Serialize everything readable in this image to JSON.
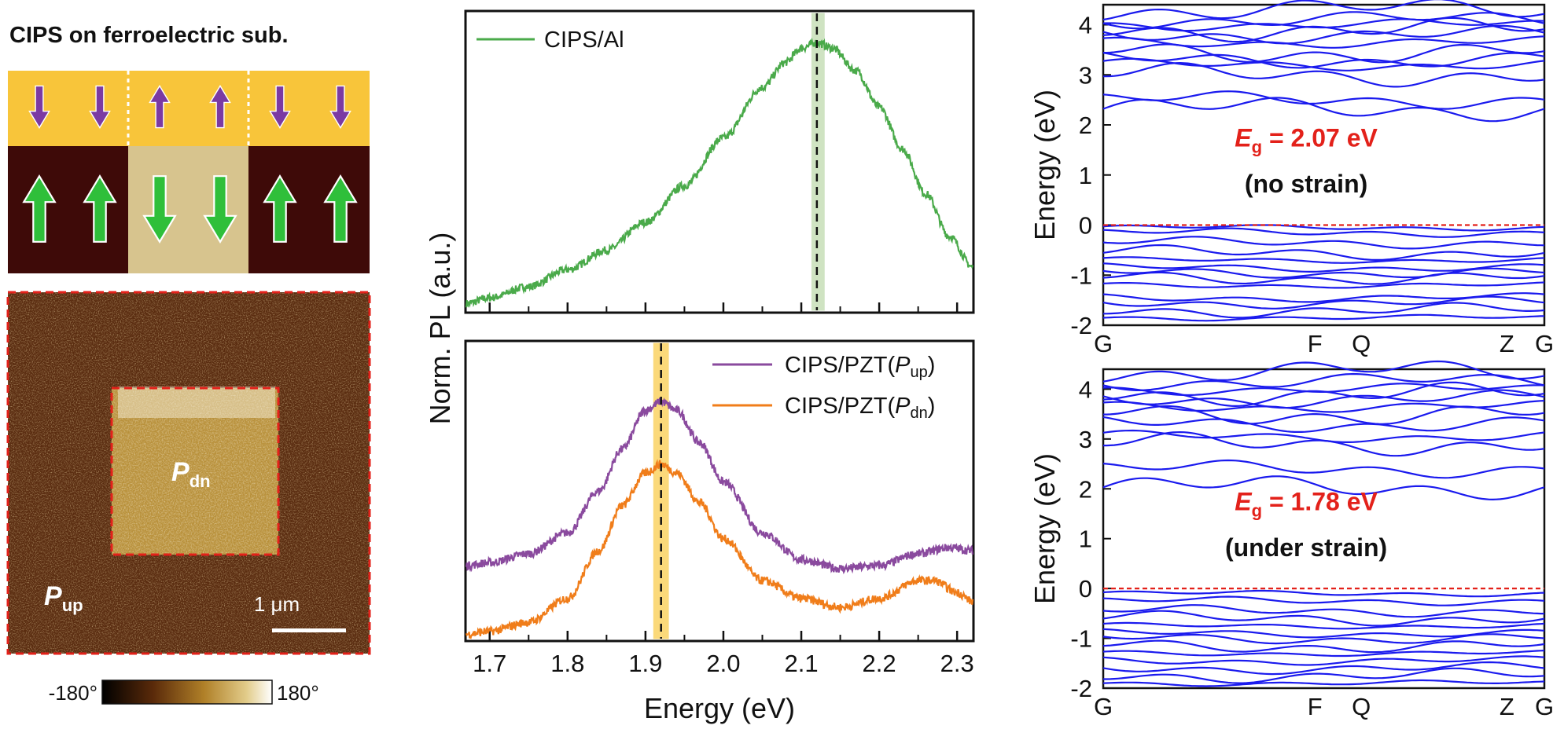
{
  "schematic": {
    "title": "CIPS on ferroelectric sub.",
    "colors": {
      "cips_layer": "#f8c53a",
      "substrate_up": "#3e0a08",
      "substrate_dn": "#d7c48e",
      "arrow_up_down_cips": "#7b3aa3",
      "arrow_substrate": "#2fbf3a"
    }
  },
  "pfm_image": {
    "outer_label": "P",
    "outer_sub": "up",
    "inner_label": "P",
    "inner_sub": "dn",
    "scalebar": "1 μm",
    "colorbar_min": "-180°",
    "colorbar_max": "180°"
  },
  "chart_data": [
    {
      "type": "line",
      "panel": "PL top",
      "series": [
        {
          "name": "CIPS/Al",
          "color": "#4aaa4a",
          "x": [
            1.67,
            1.7,
            1.75,
            1.8,
            1.85,
            1.9,
            1.95,
            2.0,
            2.05,
            2.08,
            2.1,
            2.12,
            2.14,
            2.17,
            2.2,
            2.23,
            2.26,
            2.29,
            2.32
          ],
          "y": [
            0.03,
            0.05,
            0.09,
            0.15,
            0.22,
            0.32,
            0.45,
            0.62,
            0.8,
            0.89,
            0.94,
            0.96,
            0.94,
            0.86,
            0.73,
            0.58,
            0.42,
            0.27,
            0.16
          ]
        }
      ],
      "xlim": [
        1.67,
        2.32
      ],
      "ylim": [
        0,
        1.07
      ],
      "shaded_band": {
        "x0": 2.113,
        "x1": 2.13,
        "color": "#cfe3c2"
      },
      "dashed_line_x": 2.12
    },
    {
      "type": "line",
      "panel": "PL bottom",
      "series": [
        {
          "name": "CIPS/PZT(Pup)",
          "color": "#8a4a9e",
          "x": [
            1.67,
            1.7,
            1.75,
            1.8,
            1.84,
            1.87,
            1.9,
            1.92,
            1.94,
            1.97,
            2.0,
            2.05,
            2.1,
            2.15,
            2.2,
            2.25,
            2.29,
            2.32
          ],
          "y": [
            0.25,
            0.26,
            0.29,
            0.36,
            0.5,
            0.64,
            0.77,
            0.8,
            0.77,
            0.66,
            0.53,
            0.36,
            0.27,
            0.24,
            0.25,
            0.29,
            0.31,
            0.3
          ]
        },
        {
          "name": "CIPS/PZT(Pdn)",
          "color": "#f07d1a",
          "x": [
            1.67,
            1.7,
            1.75,
            1.8,
            1.84,
            1.87,
            1.9,
            1.92,
            1.94,
            1.97,
            2.0,
            2.05,
            2.1,
            2.15,
            2.2,
            2.25,
            2.27,
            2.3,
            2.32
          ],
          "y": [
            0.02,
            0.03,
            0.06,
            0.14,
            0.3,
            0.45,
            0.56,
            0.59,
            0.56,
            0.46,
            0.34,
            0.2,
            0.14,
            0.11,
            0.14,
            0.2,
            0.2,
            0.16,
            0.13
          ]
        }
      ],
      "xlim": [
        1.67,
        2.32
      ],
      "ylim": [
        0,
        1.0
      ],
      "shaded_band": {
        "x0": 1.91,
        "x1": 1.93,
        "color": "#fbd97a"
      },
      "dashed_line_x": 1.92,
      "xticks": [
        "1.7",
        "1.8",
        "1.9",
        "2.0",
        "2.1",
        "2.2",
        "2.3"
      ],
      "xlabel": "Energy (eV)"
    },
    {
      "type": "line",
      "panel": "band structure no strain",
      "kpoints": [
        "G",
        "F",
        "Q",
        "Z",
        "G"
      ],
      "ylim": [
        -2,
        4.4
      ],
      "yticks": [
        "-2",
        "-1",
        "0",
        "1",
        "2",
        "3",
        "4"
      ],
      "ylabel": "Energy (eV)",
      "band_color": "#1a1aee",
      "conduction_levels": [
        2.07,
        2.5,
        3.0,
        3.2,
        3.3,
        3.45,
        3.65,
        3.8,
        3.9,
        4.0,
        4.1,
        4.3
      ],
      "valence_levels": [
        -0.05,
        -0.15,
        -0.35,
        -0.55,
        -0.7,
        -0.85,
        -0.95,
        -1.05,
        -1.2,
        -1.45,
        -1.55,
        -1.7,
        -1.85
      ],
      "gap_text": {
        "label": "E",
        "sub": "g",
        "value": "= 2.07 eV",
        "note": "(no strain)",
        "color": "#e3211a"
      },
      "fermi_line": 0
    },
    {
      "type": "line",
      "panel": "band structure under strain",
      "kpoints": [
        "G",
        "F",
        "Q",
        "Z",
        "G"
      ],
      "ylim": [
        -2,
        4.4
      ],
      "yticks": [
        "-2",
        "-1",
        "0",
        "1",
        "2",
        "3",
        "4"
      ],
      "ylabel": "Energy (eV)",
      "band_color": "#1a1aee",
      "conduction_levels": [
        1.78,
        2.4,
        2.9,
        3.05,
        3.3,
        3.5,
        3.65,
        3.8,
        3.9,
        4.0,
        4.15,
        4.35
      ],
      "valence_levels": [
        -0.1,
        -0.25,
        -0.45,
        -0.6,
        -0.75,
        -0.9,
        -1.0,
        -1.15,
        -1.3,
        -1.45,
        -1.6,
        -1.75,
        -1.9
      ],
      "gap_text": {
        "label": "E",
        "sub": "g",
        "value": "= 1.78 eV",
        "note": "(under strain)",
        "color": "#e3211a"
      },
      "fermi_line": 0
    }
  ],
  "shared": {
    "ylabel_pl": "Norm. PL (a.u.)"
  }
}
